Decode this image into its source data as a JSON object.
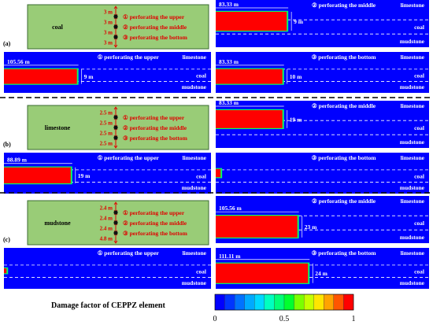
{
  "rows": [
    {
      "label": "(a)",
      "schematic": {
        "seam": "coal",
        "spacings": [
          "3 m",
          "3 m",
          "3 m",
          "3 m"
        ],
        "positions": [
          "① perforating the upper",
          "② perforating the middle",
          "③ perforating the bottom"
        ]
      },
      "panels": [
        {
          "caption": "② perforating the middle",
          "length": "83.33 m",
          "height": "9 m",
          "layers": [
            "limestone",
            "coal",
            "mudstone"
          ],
          "zone": {
            "start": 0.0,
            "end": 0.34,
            "top": 0.25,
            "bottom": 0.65
          }
        },
        {
          "caption": "① perforating the upper",
          "length": "105.56 m",
          "height": "9 m",
          "layers": [
            "limestone",
            "coal",
            "mudstone"
          ],
          "zone": {
            "start": 0.0,
            "end": 0.36,
            "top": 0.42,
            "bottom": 0.78
          }
        },
        {
          "caption": "③ perforating the bottom",
          "length": "83.33 m",
          "height": "10 m",
          "layers": [
            "limestone",
            "coal",
            "mudstone"
          ],
          "zone": {
            "start": 0.0,
            "end": 0.32,
            "top": 0.42,
            "bottom": 0.78
          }
        }
      ]
    },
    {
      "label": "(b)",
      "schematic": {
        "seam": "limestone",
        "spacings": [
          "2.5 m",
          "2.5 m",
          "2.5 m",
          "2.5 m"
        ],
        "positions": [
          "① perforating the upper",
          "② perforating the middle",
          "③ perforating the bottom"
        ]
      },
      "panels": [
        {
          "caption": "② perforating the middle",
          "length": "83.33 m",
          "height": "19 m",
          "layers": [
            "limestone",
            "coal",
            "mudstone"
          ],
          "zone": {
            "start": 0.0,
            "end": 0.32,
            "top": 0.2,
            "bottom": 0.58
          }
        },
        {
          "caption": "① perforating the upper",
          "length": "88.89 m",
          "height": "19 m",
          "layers": [
            "limestone",
            "coal",
            "mudstone"
          ],
          "zone": {
            "start": 0.0,
            "end": 0.33,
            "top": 0.36,
            "bottom": 0.75
          }
        },
        {
          "caption": "③ perforating the bottom",
          "length": "",
          "height": "",
          "layers": [
            "limestone",
            "coal",
            "mudstone"
          ],
          "zone": {
            "start": 0.0,
            "end": 0.03,
            "top": 0.4,
            "bottom": 0.6
          }
        }
      ]
    },
    {
      "label": "(c)",
      "schematic": {
        "seam": "mudstone",
        "spacings": [
          "2.4 m",
          "2.4 m",
          "2.4 m",
          "4.8 m"
        ],
        "positions": [
          "① perforating the upper",
          "② perforating the middle",
          "③ perforating the bottom"
        ]
      },
      "panels": [
        {
          "caption": "② perforating the middle",
          "length": "105.56 m",
          "height": "23 m",
          "layers": [
            "limestone",
            "coal",
            "mudstone"
          ],
          "zone": {
            "start": 0.0,
            "end": 0.39,
            "top": 0.42,
            "bottom": 0.88
          }
        },
        {
          "caption": "① perforating the upper",
          "length": "",
          "height": "",
          "layers": [
            "limestone",
            "coal",
            "mudstone"
          ],
          "zone": {
            "start": 0.0,
            "end": 0.02,
            "top": 0.5,
            "bottom": 0.62
          }
        },
        {
          "caption": "③ perforating the bottom",
          "length": "111.11 m",
          "height": "24 m",
          "layers": [
            "limestone",
            "coal",
            "mudstone"
          ],
          "zone": {
            "start": 0.0,
            "end": 0.44,
            "top": 0.38,
            "bottom": 0.86
          }
        }
      ]
    }
  ],
  "legend": {
    "title": "Damage factor of CEPPZ element",
    "colors": [
      "#0000ff",
      "#0035ff",
      "#0072ff",
      "#00aaff",
      "#00d8ff",
      "#00ffbf",
      "#00ff77",
      "#00ff2e",
      "#7bff00",
      "#c6ff00",
      "#ffe500",
      "#ffa300",
      "#ff5500",
      "#ff0000"
    ],
    "ticks": [
      "0",
      "0.5",
      "1"
    ]
  },
  "colors": {
    "field": "#0000ff",
    "damage": "#ff0000",
    "fringe": "#00ff66",
    "schematic_fill": "#99cc77",
    "schematic_border": "#3a6b30",
    "label_red": "#e00000"
  }
}
